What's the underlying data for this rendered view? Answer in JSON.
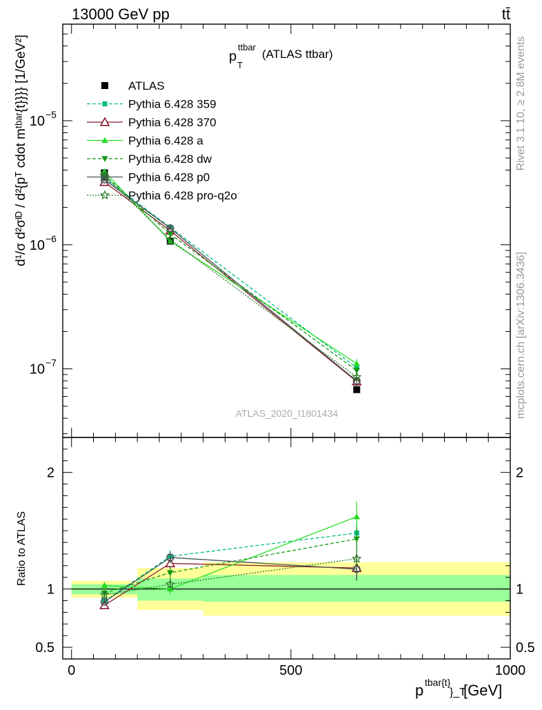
{
  "header": {
    "left": "13000 GeV pp",
    "right": "tt̄"
  },
  "side_labels": {
    "rivet": "Rivet 3.1.10, ≥ 2.8M events",
    "mcplots": "mcplots.cern.ch [arXiv:1306.3436]"
  },
  "watermark": "ATLAS_2020_I1801434",
  "chart_data": [
    {
      "type": "line",
      "panel": "main",
      "title_main": "p",
      "title_sub": "T",
      "title_sup": "ttbar",
      "title_rest": " (ATLAS ttbar)",
      "ylabel": "d¹/σ d²σᴵᴰ / d²{pᵀ cdot mᵗᵇᵃʳ{t}}}} [1/GeV²]",
      "yscale": "log",
      "ylim": [
        2.8e-08,
        6e-05
      ],
      "xlim": [
        -20,
        1000
      ],
      "yticks": [
        {
          "value": 1e-05,
          "base": "10",
          "exp": "−5"
        },
        {
          "value": 1e-06,
          "base": "10",
          "exp": "−6"
        },
        {
          "value": 1e-07,
          "base": "10",
          "exp": "−7"
        }
      ],
      "x": [
        75,
        225,
        650
      ],
      "series": [
        {
          "name": "ATLAS",
          "color": "#000000",
          "marker": "square",
          "dash": "",
          "values": [
            3.8e-06,
            1.07e-06,
            6.8e-08
          ],
          "err": [
            2e-07,
            5e-08,
            4e-09
          ],
          "points_only": true
        },
        {
          "name": "Pythia 6.428 359",
          "color": "#00bb88",
          "marker": "square-small",
          "dash": "5,3",
          "values": [
            3.45e-06,
            1.38e-06,
            1.02e-07
          ],
          "err": [
            1e-07,
            5e-08,
            7e-09
          ]
        },
        {
          "name": "Pythia 6.428 370",
          "color": "#8b1a2b",
          "marker": "triangle-open",
          "dash": "",
          "values": [
            3.2e-06,
            1.3e-06,
            7.9e-08
          ],
          "err": [
            1e-07,
            5e-08,
            6e-09
          ]
        },
        {
          "name": "Pythia 6.428 a",
          "color": "#22dd22",
          "marker": "triangle",
          "dash": "",
          "values": [
            3.9e-06,
            1.07e-06,
            1.1e-07
          ],
          "err": [
            1.5e-07,
            5e-08,
            1e-08
          ]
        },
        {
          "name": "Pythia 6.428 dw",
          "color": "#119911",
          "marker": "triangle-down",
          "dash": "5,3",
          "values": [
            3.65e-06,
            1.22e-06,
            9.7e-08
          ],
          "err": [
            1.2e-07,
            5e-08,
            7e-09
          ]
        },
        {
          "name": "Pythia 6.428 p0",
          "color": "#445555",
          "marker": "circle-open",
          "dash": "",
          "values": [
            3.35e-06,
            1.36e-06,
            8e-08
          ],
          "err": [
            1e-07,
            5e-08,
            6e-09
          ]
        },
        {
          "name": "Pythia 6.428 pro-q2o",
          "color": "#227722",
          "marker": "star",
          "dash": "2,2",
          "values": [
            3.6e-06,
            1.1e-06,
            8.6e-08
          ],
          "err": [
            1.2e-07,
            5e-08,
            6e-09
          ]
        }
      ]
    },
    {
      "type": "line",
      "panel": "ratio",
      "ylabel": "Ratio to ATLAS",
      "xlabel_main": "p",
      "xlabel_sup": "tbar{t}",
      "xlabel_sub": "}_T",
      "xlabel_rest": " [GeV]",
      "ylim": [
        0.4,
        2.3
      ],
      "xlim": [
        -20,
        1000
      ],
      "yticks": [
        {
          "value": 0.5,
          "label": "0.5"
        },
        {
          "value": 1,
          "label": "1"
        },
        {
          "value": 2,
          "label": "2"
        }
      ],
      "xticks": [
        {
          "value": 0,
          "label": "0"
        },
        {
          "value": 500,
          "label": "500"
        },
        {
          "value": 1000,
          "label": "1000"
        }
      ],
      "bands": [
        {
          "x0": 0,
          "x1": 150,
          "stat_lo": 0.955,
          "stat_hi": 1.04,
          "tot_lo": 0.925,
          "tot_hi": 1.07
        },
        {
          "x0": 150,
          "x1": 300,
          "stat_lo": 0.9,
          "stat_hi": 1.09,
          "tot_lo": 0.82,
          "tot_hi": 1.18
        },
        {
          "x0": 300,
          "x1": 1000,
          "stat_lo": 0.89,
          "stat_hi": 1.12,
          "tot_lo": 0.77,
          "tot_hi": 1.23
        }
      ],
      "band_colors": {
        "stat": "#99ff99",
        "total": "#ffff99"
      },
      "x": [
        75,
        225,
        650
      ],
      "series": [
        {
          "name": "Pythia 6.428 359",
          "color": "#00bb88",
          "marker": "square-small",
          "dash": "5,3",
          "values": [
            0.895,
            1.28,
            1.48
          ],
          "err": [
            0.02,
            0.05,
            0.1
          ]
        },
        {
          "name": "Pythia 6.428 370",
          "color": "#8b1a2b",
          "marker": "triangle-open",
          "dash": "",
          "values": [
            0.86,
            1.22,
            1.18
          ],
          "err": [
            0.02,
            0.05,
            0.1
          ]
        },
        {
          "name": "Pythia 6.428 a",
          "color": "#22dd22",
          "marker": "triangle",
          "dash": "",
          "values": [
            1.03,
            1.0,
            1.62
          ],
          "err": [
            0.03,
            0.05,
            0.13
          ]
        },
        {
          "name": "Pythia 6.428 dw",
          "color": "#119911",
          "marker": "triangle-down",
          "dash": "5,3",
          "values": [
            0.965,
            1.14,
            1.43
          ],
          "err": [
            0.025,
            0.05,
            0.1
          ]
        },
        {
          "name": "Pythia 6.428 p0",
          "color": "#445555",
          "marker": "circle-open",
          "dash": "",
          "values": [
            0.89,
            1.27,
            1.17
          ],
          "err": [
            0.02,
            0.05,
            0.1
          ]
        },
        {
          "name": "Pythia 6.428 pro-q2o",
          "color": "#227722",
          "marker": "star",
          "dash": "2,2",
          "values": [
            0.95,
            1.04,
            1.26
          ],
          "err": [
            0.025,
            0.05,
            0.1
          ]
        }
      ]
    }
  ]
}
